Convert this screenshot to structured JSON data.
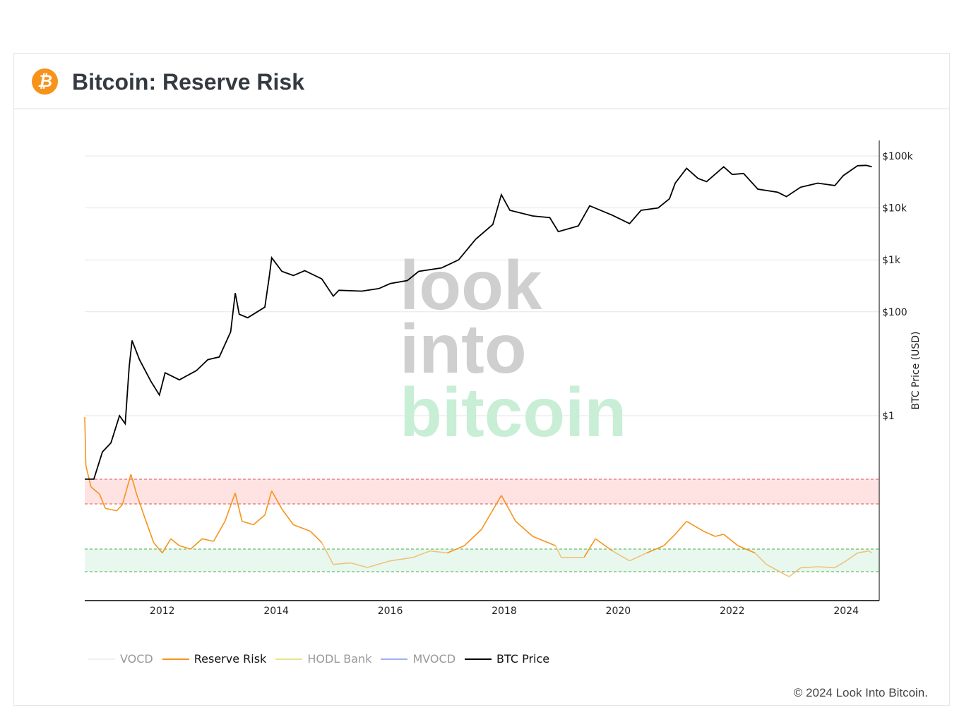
{
  "header": {
    "title": "Bitcoin: Reserve Risk",
    "logo_glyph": "₿"
  },
  "watermark": [
    "look",
    "into",
    "bitcoin"
  ],
  "legend": [
    {
      "label": "VOCD",
      "color": "#f0f0f0",
      "active": false
    },
    {
      "label": "Reserve Risk",
      "color": "#f7931a",
      "active": true
    },
    {
      "label": "HODL Bank",
      "color": "#e6e68a",
      "active": false
    },
    {
      "label": "MVOCD",
      "color": "#a0b0f0",
      "active": false
    },
    {
      "label": "BTC Price",
      "color": "#000000",
      "active": true
    }
  ],
  "footer": {
    "copyright": "© 2024 Look Into Bitcoin."
  },
  "chart_data": {
    "type": "line",
    "title": "Bitcoin: Reserve Risk",
    "xlabel": "",
    "ylabel": "BTC Price (USD)",
    "xlim": [
      2010.64,
      2024.58
    ],
    "x_ticks": [
      {
        "v": 2012,
        "label": "2012"
      },
      {
        "v": 2014,
        "label": "2014"
      },
      {
        "v": 2016,
        "label": "2016"
      },
      {
        "v": 2018,
        "label": "2018"
      },
      {
        "v": 2020,
        "label": "2020"
      },
      {
        "v": 2022,
        "label": "2022"
      },
      {
        "v": 2024,
        "label": "2024"
      }
    ],
    "y_scale": "log",
    "y_ticks": [
      {
        "v": 1,
        "label": "$1"
      },
      {
        "v": 100,
        "label": "$100"
      },
      {
        "v": 1000,
        "label": "$1k"
      },
      {
        "v": 10000,
        "label": "$10k"
      },
      {
        "v": 100000,
        "label": "$100k"
      }
    ],
    "reserve_risk_axis": {
      "scale": "log",
      "visible": false
    },
    "bands": [
      {
        "name": "high-risk-zone",
        "range": [
          0.008,
          0.02
        ],
        "color": "#ffe3e3",
        "line": "#e05050"
      },
      {
        "name": "low-risk-zone",
        "range": [
          0.00065,
          0.0015
        ],
        "color": "#e8f8ef",
        "line": "#40b040"
      }
    ],
    "series": [
      {
        "name": "BTC Price",
        "color": "#000000",
        "points": [
          [
            2010.64,
            0.06
          ],
          [
            2010.8,
            0.06
          ],
          [
            2010.95,
            0.2
          ],
          [
            2011.1,
            0.3
          ],
          [
            2011.25,
            1
          ],
          [
            2011.35,
            0.7
          ],
          [
            2011.42,
            8.7
          ],
          [
            2011.47,
            28
          ],
          [
            2011.6,
            12
          ],
          [
            2011.8,
            4.6
          ],
          [
            2011.95,
            2.5
          ],
          [
            2012.05,
            6.7
          ],
          [
            2012.3,
            4.9
          ],
          [
            2012.6,
            7.4
          ],
          [
            2012.8,
            12
          ],
          [
            2013.0,
            13.5
          ],
          [
            2013.2,
            41
          ],
          [
            2013.28,
            230
          ],
          [
            2013.35,
            90
          ],
          [
            2013.5,
            77
          ],
          [
            2013.8,
            123
          ],
          [
            2013.88,
            500
          ],
          [
            2013.92,
            1100
          ],
          [
            2014.1,
            600
          ],
          [
            2014.3,
            500
          ],
          [
            2014.5,
            620
          ],
          [
            2014.8,
            430
          ],
          [
            2015.0,
            200
          ],
          [
            2015.1,
            260
          ],
          [
            2015.5,
            250
          ],
          [
            2015.8,
            280
          ],
          [
            2016.0,
            350
          ],
          [
            2016.3,
            400
          ],
          [
            2016.5,
            600
          ],
          [
            2016.9,
            700
          ],
          [
            2017.2,
            1000
          ],
          [
            2017.5,
            2500
          ],
          [
            2017.8,
            4800
          ],
          [
            2017.95,
            18000
          ],
          [
            2018.1,
            9000
          ],
          [
            2018.5,
            7000
          ],
          [
            2018.8,
            6500
          ],
          [
            2018.95,
            3500
          ],
          [
            2019.3,
            4500
          ],
          [
            2019.5,
            11000
          ],
          [
            2019.9,
            7200
          ],
          [
            2020.2,
            5000
          ],
          [
            2020.4,
            9000
          ],
          [
            2020.7,
            10000
          ],
          [
            2020.9,
            15000
          ],
          [
            2021.0,
            30000
          ],
          [
            2021.2,
            58000
          ],
          [
            2021.4,
            37000
          ],
          [
            2021.55,
            32000
          ],
          [
            2021.85,
            62000
          ],
          [
            2022.0,
            44000
          ],
          [
            2022.2,
            46000
          ],
          [
            2022.45,
            23000
          ],
          [
            2022.8,
            20000
          ],
          [
            2022.95,
            16500
          ],
          [
            2023.2,
            25000
          ],
          [
            2023.5,
            30000
          ],
          [
            2023.8,
            27000
          ],
          [
            2023.95,
            42000
          ],
          [
            2024.2,
            65000
          ],
          [
            2024.35,
            66000
          ],
          [
            2024.45,
            62000
          ]
        ]
      },
      {
        "name": "Reserve Risk",
        "color": "#f7931a",
        "low_color": "#f0c27a",
        "points": [
          [
            2010.64,
            0.2
          ],
          [
            2010.66,
            0.033
          ],
          [
            2010.75,
            0.015
          ],
          [
            2010.9,
            0.0115
          ],
          [
            2011.0,
            0.0068
          ],
          [
            2011.2,
            0.0062
          ],
          [
            2011.3,
            0.0078
          ],
          [
            2011.45,
            0.024
          ],
          [
            2011.55,
            0.0115
          ],
          [
            2011.7,
            0.0046
          ],
          [
            2011.85,
            0.0019
          ],
          [
            2012.0,
            0.0013
          ],
          [
            2012.15,
            0.0022
          ],
          [
            2012.3,
            0.0017
          ],
          [
            2012.5,
            0.0015
          ],
          [
            2012.7,
            0.0022
          ],
          [
            2012.9,
            0.002
          ],
          [
            2013.1,
            0.0042
          ],
          [
            2013.28,
            0.012
          ],
          [
            2013.4,
            0.0042
          ],
          [
            2013.6,
            0.0037
          ],
          [
            2013.8,
            0.0053
          ],
          [
            2013.92,
            0.013
          ],
          [
            2014.1,
            0.0066
          ],
          [
            2014.3,
            0.0037
          ],
          [
            2014.6,
            0.0029
          ],
          [
            2014.8,
            0.0019
          ],
          [
            2015.0,
            0.00085
          ],
          [
            2015.3,
            0.0009
          ],
          [
            2015.6,
            0.00076
          ],
          [
            2016.0,
            0.00097
          ],
          [
            2016.4,
            0.0011
          ],
          [
            2016.7,
            0.0014
          ],
          [
            2017.0,
            0.0013
          ],
          [
            2017.3,
            0.0017
          ],
          [
            2017.6,
            0.0031
          ],
          [
            2017.95,
            0.011
          ],
          [
            2018.2,
            0.0042
          ],
          [
            2018.5,
            0.0024
          ],
          [
            2018.9,
            0.0017
          ],
          [
            2019.0,
            0.0011
          ],
          [
            2019.4,
            0.0011
          ],
          [
            2019.6,
            0.0022
          ],
          [
            2019.9,
            0.0014
          ],
          [
            2020.2,
            0.00097
          ],
          [
            2020.5,
            0.0013
          ],
          [
            2020.8,
            0.0017
          ],
          [
            2021.0,
            0.0026
          ],
          [
            2021.2,
            0.0042
          ],
          [
            2021.5,
            0.0029
          ],
          [
            2021.7,
            0.0024
          ],
          [
            2021.85,
            0.0026
          ],
          [
            2022.1,
            0.0017
          ],
          [
            2022.4,
            0.0013
          ],
          [
            2022.6,
            0.00085
          ],
          [
            2022.9,
            0.0006
          ],
          [
            2023.0,
            0.00054
          ],
          [
            2023.2,
            0.00075
          ],
          [
            2023.5,
            0.00078
          ],
          [
            2023.8,
            0.00075
          ],
          [
            2024.0,
            0.00097
          ],
          [
            2024.2,
            0.0013
          ],
          [
            2024.4,
            0.0014
          ],
          [
            2024.45,
            0.0013
          ]
        ]
      }
    ]
  }
}
